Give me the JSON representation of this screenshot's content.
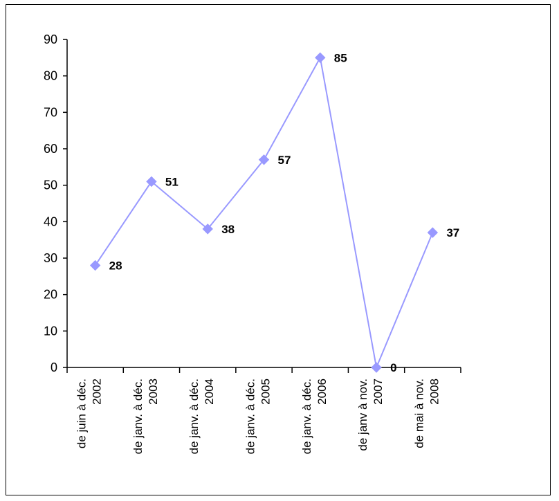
{
  "chart_data": {
    "type": "line",
    "title": "",
    "xlabel": "",
    "ylabel": "",
    "ylim": [
      0,
      90
    ],
    "yticks": [
      0,
      10,
      20,
      30,
      40,
      50,
      60,
      70,
      80,
      90
    ],
    "grid": false,
    "legend": "none",
    "categories": [
      [
        "de juin à déc.",
        "2002"
      ],
      [
        "de janv. à déc.",
        "2003"
      ],
      [
        "de janv. à déc.",
        "2004"
      ],
      [
        "de janv. à déc.",
        "2005"
      ],
      [
        "de janv. à déc.",
        "2006"
      ],
      [
        "de janv à nov.",
        "2007"
      ],
      [
        "de mai à nov.",
        "2008"
      ]
    ],
    "series": [
      {
        "values": [
          28,
          51,
          38,
          57,
          85,
          0,
          37
        ],
        "color": "#9999ff",
        "marker": "diamond"
      }
    ],
    "data_labels": [
      "28",
      "51",
      "38",
      "57",
      "85",
      "0",
      "37"
    ]
  }
}
